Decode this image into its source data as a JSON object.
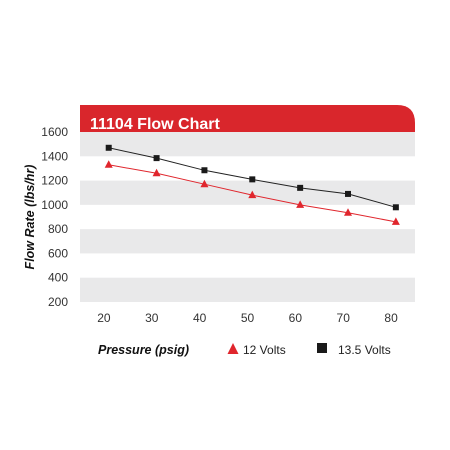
{
  "chart_data": {
    "type": "line",
    "title": "11104 Flow Chart",
    "xlabel": "Pressure (psig)",
    "ylabel": "Flow Rate (lbs/hr)",
    "x": [
      20,
      30,
      40,
      50,
      60,
      70,
      80
    ],
    "xlim": [
      15,
      85
    ],
    "ylim": [
      200,
      1600
    ],
    "yticks": [
      200,
      400,
      600,
      800,
      1000,
      1200,
      1400,
      1600
    ],
    "grid": "alternating horizontal bands",
    "legend_position": "bottom",
    "series": [
      {
        "name": "12 Volts",
        "marker": "triangle",
        "color": "#e0262d",
        "x": [
          21,
          31,
          41,
          51,
          61,
          71,
          81
        ],
        "values": [
          1330,
          1260,
          1170,
          1080,
          1000,
          935,
          860
        ]
      },
      {
        "name": "13.5 Volts",
        "marker": "square",
        "color": "#1a1a1a",
        "x": [
          21,
          31,
          41,
          51,
          61,
          71,
          81
        ],
        "values": [
          1470,
          1385,
          1285,
          1210,
          1140,
          1090,
          980
        ]
      }
    ],
    "colors": {
      "title_bar": "#d9262c",
      "band": "#e9e9ea",
      "line_12v": "#e0262d",
      "line_135v": "#222222"
    }
  }
}
